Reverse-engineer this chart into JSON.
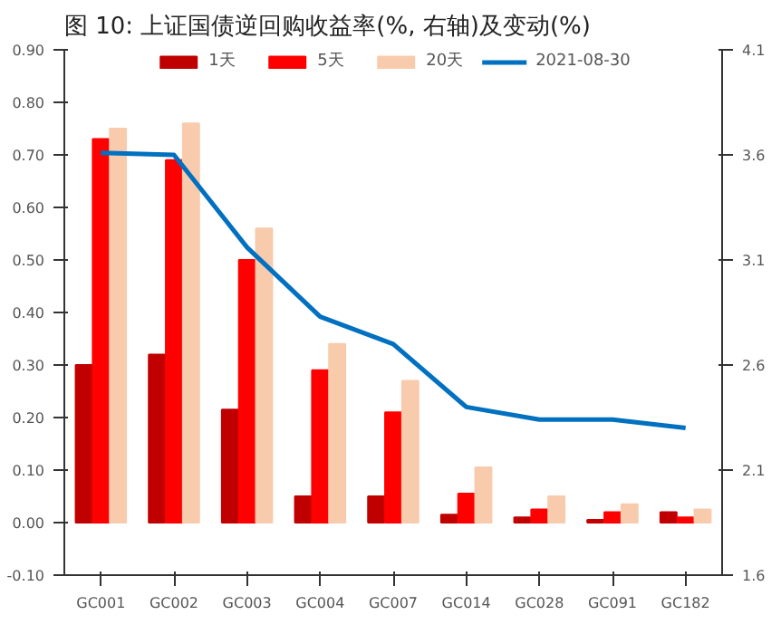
{
  "chart_data": {
    "type": "bar",
    "title": "图 10:      上证国债逆回购收益率(%, 右轴)及变动(%)",
    "categories": [
      "GC001",
      "GC002",
      "GC003",
      "GC004",
      "GC007",
      "GC014",
      "GC028",
      "GC091",
      "GC182"
    ],
    "series": [
      {
        "name": "1天",
        "color": "#c00000",
        "values": [
          0.3,
          0.32,
          0.215,
          0.05,
          0.05,
          0.015,
          0.01,
          0.005,
          0.02
        ]
      },
      {
        "name": "5天",
        "color": "#ff0000",
        "values": [
          0.73,
          0.69,
          0.5,
          0.29,
          0.21,
          0.055,
          0.025,
          0.02,
          0.01
        ]
      },
      {
        "name": "20天",
        "color": "#f8cbad",
        "values": [
          0.75,
          0.76,
          0.56,
          0.34,
          0.27,
          0.105,
          0.05,
          0.035,
          0.025
        ]
      },
      {
        "name": "2021-08-30",
        "type": "line",
        "axis": "y2",
        "color": "#0070c0",
        "values": [
          3.61,
          3.6,
          3.16,
          2.83,
          2.7,
          2.4,
          2.34,
          2.34,
          2.3
        ]
      }
    ],
    "ylim": [
      -0.1,
      0.9
    ],
    "yticks": [
      {
        "value": -0.1,
        "label": "-0.10"
      },
      {
        "value": 0,
        "label": "0.00"
      },
      {
        "value": 0.1,
        "label": "0.10"
      },
      {
        "value": 0.2,
        "label": "0.20"
      },
      {
        "value": 0.3,
        "label": "0.30"
      },
      {
        "value": 0.4,
        "label": "0.40"
      },
      {
        "value": 0.5,
        "label": "0.50"
      },
      {
        "value": 0.6,
        "label": "0.60"
      },
      {
        "value": 0.7,
        "label": "0.70"
      },
      {
        "value": 0.8,
        "label": "0.80"
      },
      {
        "value": 0.9,
        "label": "0.90"
      }
    ],
    "y2lim": [
      1.6,
      4.1
    ],
    "y2ticks": [
      1.6,
      2.1,
      2.6,
      3.1,
      3.6,
      4.1
    ],
    "legend": "top",
    "grid": false
  }
}
